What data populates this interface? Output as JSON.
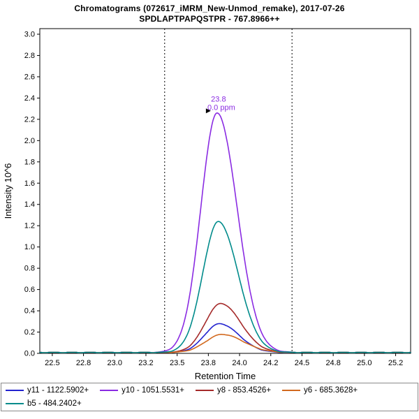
{
  "chart_data": {
    "type": "line",
    "title": "Chromatograms (072617_iMRM_New-Unmod_remake), 2017-07-26",
    "subtitle": "SPDLAPTPAPQSTPR - 767.8966++",
    "xlabel": "Retention Time",
    "ylabel": "Intensity 10^6",
    "xlim": [
      22.4,
      25.37
    ],
    "ylim": [
      0,
      3.0
    ],
    "x_ticks": [
      {
        "pos": 22.5,
        "label": "22.5"
      },
      {
        "pos": 22.75,
        "label": "22.8"
      },
      {
        "pos": 23.0,
        "label": "23.0"
      },
      {
        "pos": 23.25,
        "label": "23.2"
      },
      {
        "pos": 23.5,
        "label": "23.5"
      },
      {
        "pos": 23.75,
        "label": "23.8"
      },
      {
        "pos": 24.0,
        "label": "24.0"
      },
      {
        "pos": 24.25,
        "label": "24.2"
      },
      {
        "pos": 24.5,
        "label": "24.5"
      },
      {
        "pos": 24.75,
        "label": "24.8"
      },
      {
        "pos": 25.0,
        "label": "25.0"
      },
      {
        "pos": 25.25,
        "label": "25.2"
      }
    ],
    "y_ticks": [
      "0.0",
      "0.2",
      "0.4",
      "0.6",
      "0.8",
      "1.0",
      "1.2",
      "1.4",
      "1.6",
      "1.8",
      "2.0",
      "2.2",
      "2.4",
      "2.6",
      "2.8",
      "3.0"
    ],
    "grid": false,
    "legend_position": "bottom",
    "integration_boundaries": [
      23.4,
      24.42
    ],
    "peak_annotation": {
      "retention_time": "23.8",
      "mass_error": "0.0 ppm",
      "x": 23.82,
      "y": 2.25,
      "color": "#8A2BE2"
    },
    "series": [
      {
        "name": "y11 - 1122.5902+",
        "color": "#2323cf",
        "peak": {
          "center": 23.84,
          "height": 0.27,
          "sigma_left": 0.12,
          "sigma_right": 0.155
        }
      },
      {
        "name": "y10 - 1051.5531+",
        "color": "#8A2BE2",
        "peak": {
          "center": 23.82,
          "height": 2.25,
          "sigma_left": 0.13,
          "sigma_right": 0.16
        }
      },
      {
        "name": "y8 - 853.4526+",
        "color": "#A52A2A",
        "peak": {
          "center": 23.85,
          "height": 0.46,
          "sigma_left": 0.125,
          "sigma_right": 0.16
        }
      },
      {
        "name": "y6 - 685.3628+",
        "color": "#D2691E",
        "peak": {
          "center": 23.86,
          "height": 0.17,
          "sigma_left": 0.13,
          "sigma_right": 0.17
        }
      },
      {
        "name": "b5 - 484.2402+",
        "color": "#008B8B",
        "peak": {
          "center": 23.83,
          "height": 1.23,
          "sigma_left": 0.125,
          "sigma_right": 0.158
        }
      }
    ]
  }
}
